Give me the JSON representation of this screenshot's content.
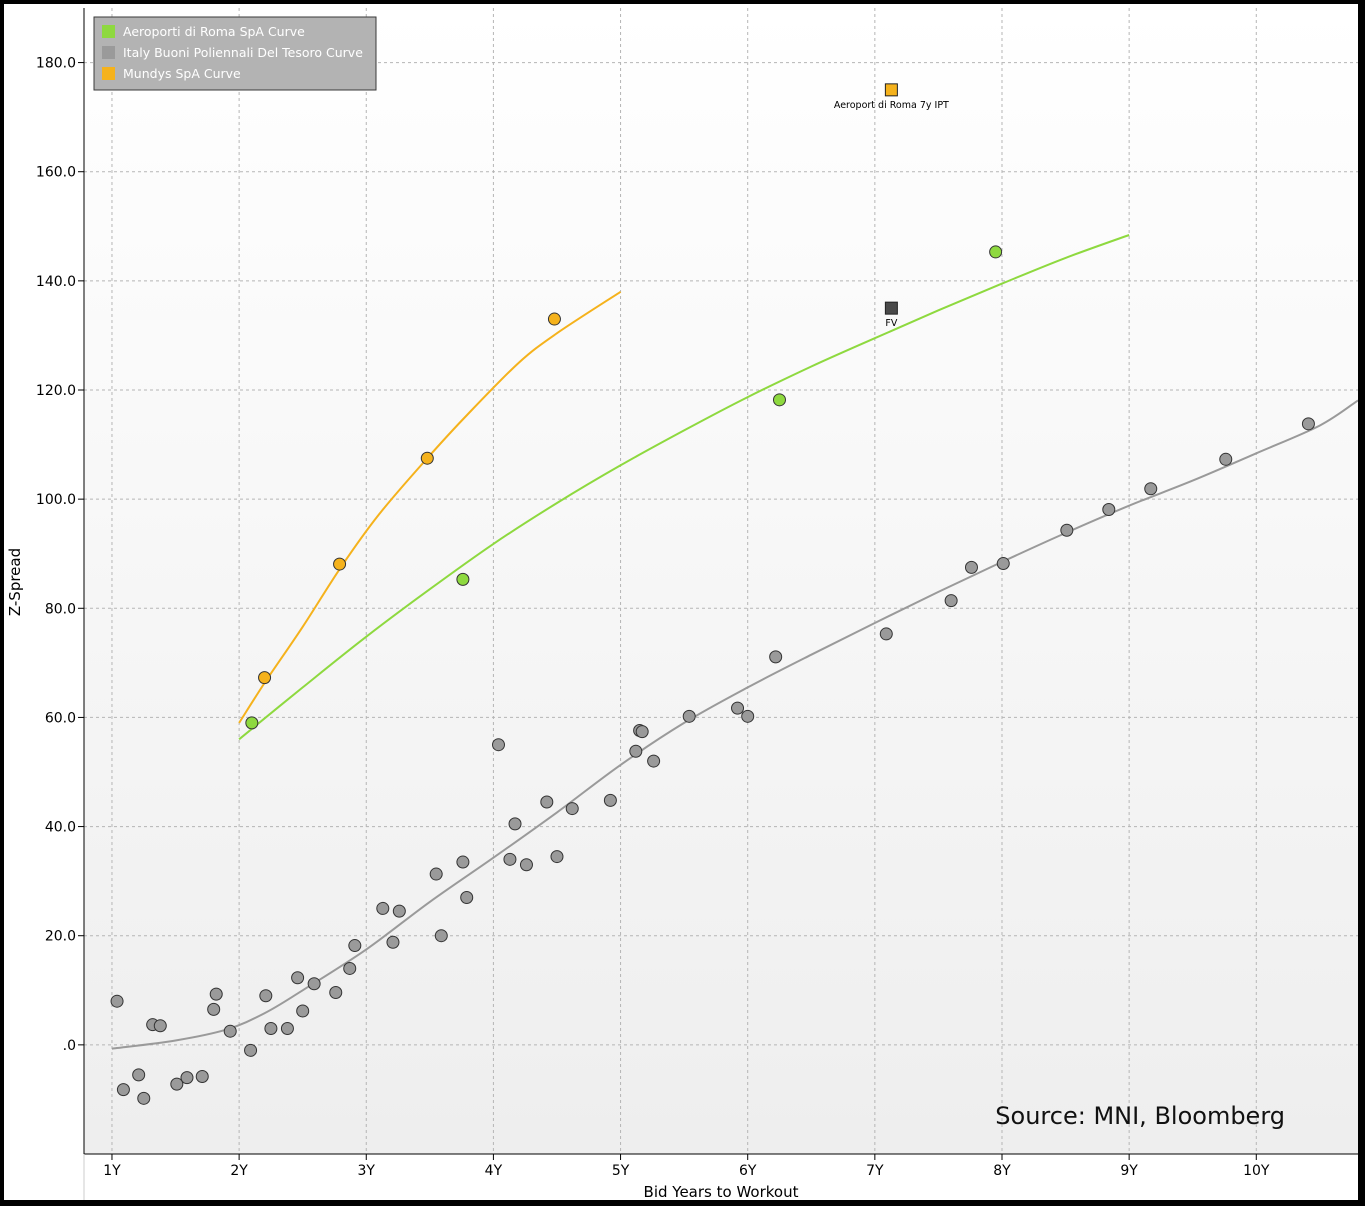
{
  "chart_data": {
    "type": "scatter",
    "xlabel": "Bid Years to Workout",
    "ylabel": "Z-Spread",
    "xlim": [
      0.78,
      10.8
    ],
    "ylim": [
      -20,
      190
    ],
    "x_ticks": [
      {
        "value": 1,
        "label": "1Y"
      },
      {
        "value": 2,
        "label": "2Y"
      },
      {
        "value": 3,
        "label": "3Y"
      },
      {
        "value": 4,
        "label": "4Y"
      },
      {
        "value": 5,
        "label": "5Y"
      },
      {
        "value": 6,
        "label": "6Y"
      },
      {
        "value": 7,
        "label": "7Y"
      },
      {
        "value": 8,
        "label": "8Y"
      },
      {
        "value": 9,
        "label": "9Y"
      },
      {
        "value": 10,
        "label": "10Y"
      }
    ],
    "y_ticks": [
      {
        "value": 0,
        "label": ".0"
      },
      {
        "value": 20,
        "label": "20.0"
      },
      {
        "value": 40,
        "label": "40.0"
      },
      {
        "value": 60,
        "label": "60.0"
      },
      {
        "value": 80,
        "label": "80.0"
      },
      {
        "value": 100,
        "label": "100.0"
      },
      {
        "value": 120,
        "label": "120.0"
      },
      {
        "value": 140,
        "label": "140.0"
      },
      {
        "value": 160,
        "label": "160.0"
      },
      {
        "value": 180,
        "label": "180.0"
      }
    ],
    "grid": true,
    "legend_position": "top-left",
    "source_note": "Source: MNI, Bloomberg",
    "series": [
      {
        "name": "Aeroporti di Roma SpA Curve",
        "color": "#8ed93f",
        "points": [
          [
            2.1,
            59.0
          ],
          [
            3.76,
            85.3
          ],
          [
            6.25,
            118.2
          ],
          [
            7.95,
            145.3
          ]
        ],
        "curve": [
          [
            2.0,
            56.0
          ],
          [
            2.5,
            65.5
          ],
          [
            3.0,
            74.8
          ],
          [
            3.5,
            83.5
          ],
          [
            4.0,
            91.8
          ],
          [
            4.5,
            99.3
          ],
          [
            5.0,
            106.2
          ],
          [
            5.5,
            112.6
          ],
          [
            6.0,
            118.7
          ],
          [
            6.5,
            124.3
          ],
          [
            7.0,
            129.5
          ],
          [
            7.5,
            134.6
          ],
          [
            8.0,
            139.5
          ],
          [
            8.5,
            144.2
          ],
          [
            9.0,
            148.4
          ]
        ]
      },
      {
        "name": "Italy Buoni Poliennali Del Tesoro Curve",
        "color": "#9a9a9a",
        "points": [
          [
            1.04,
            8.0
          ],
          [
            1.09,
            -8.2
          ],
          [
            1.21,
            -5.5
          ],
          [
            1.25,
            -9.8
          ],
          [
            1.32,
            3.7
          ],
          [
            1.38,
            3.5
          ],
          [
            1.51,
            -7.2
          ],
          [
            1.59,
            -6.0
          ],
          [
            1.71,
            -5.8
          ],
          [
            1.8,
            6.5
          ],
          [
            1.82,
            9.3
          ],
          [
            1.93,
            2.5
          ],
          [
            2.09,
            -1.0
          ],
          [
            2.21,
            9.0
          ],
          [
            2.25,
            3.0
          ],
          [
            2.38,
            3.0
          ],
          [
            2.46,
            12.3
          ],
          [
            2.5,
            6.2
          ],
          [
            2.59,
            11.2
          ],
          [
            2.76,
            9.6
          ],
          [
            2.87,
            14.0
          ],
          [
            2.91,
            18.2
          ],
          [
            3.13,
            25.0
          ],
          [
            3.21,
            18.8
          ],
          [
            3.26,
            24.5
          ],
          [
            3.55,
            31.3
          ],
          [
            3.59,
            20.0
          ],
          [
            3.76,
            33.5
          ],
          [
            3.79,
            27.0
          ],
          [
            4.04,
            55.0
          ],
          [
            4.13,
            34.0
          ],
          [
            4.17,
            40.5
          ],
          [
            4.26,
            33.0
          ],
          [
            4.42,
            44.5
          ],
          [
            4.5,
            34.5
          ],
          [
            4.62,
            43.3
          ],
          [
            4.92,
            44.8
          ],
          [
            5.12,
            53.8
          ],
          [
            5.15,
            57.6
          ],
          [
            5.17,
            57.4
          ],
          [
            5.26,
            52.0
          ],
          [
            5.54,
            60.2
          ],
          [
            5.92,
            61.7
          ],
          [
            6.0,
            60.2
          ],
          [
            6.22,
            71.1
          ],
          [
            7.09,
            75.3
          ],
          [
            7.6,
            81.4
          ],
          [
            7.76,
            87.5
          ],
          [
            8.01,
            88.2
          ],
          [
            8.51,
            94.3
          ],
          [
            8.84,
            98.1
          ],
          [
            9.17,
            101.9
          ],
          [
            9.76,
            107.3
          ],
          [
            10.41,
            113.8
          ]
        ],
        "curve": [
          [
            1.0,
            -0.7
          ],
          [
            1.5,
            0.8
          ],
          [
            1.9,
            2.8
          ],
          [
            2.2,
            5.8
          ],
          [
            2.5,
            10.0
          ],
          [
            3.0,
            17.5
          ],
          [
            3.5,
            26.2
          ],
          [
            4.0,
            34.3
          ],
          [
            4.5,
            42.6
          ],
          [
            5.0,
            51.3
          ],
          [
            5.5,
            59.0
          ],
          [
            6.0,
            65.5
          ],
          [
            6.5,
            71.5
          ],
          [
            7.0,
            77.3
          ],
          [
            7.5,
            83.0
          ],
          [
            8.0,
            88.5
          ],
          [
            8.5,
            93.8
          ],
          [
            9.0,
            98.8
          ],
          [
            9.5,
            103.4
          ],
          [
            10.0,
            108.4
          ],
          [
            10.5,
            113.5
          ],
          [
            10.8,
            118.1
          ]
        ]
      },
      {
        "name": "Mundys SpA Curve",
        "color": "#f5b21c",
        "points": [
          [
            2.2,
            67.3
          ],
          [
            2.79,
            88.1
          ],
          [
            3.48,
            107.5
          ],
          [
            4.48,
            133.0
          ]
        ],
        "curve": [
          [
            2.0,
            59.0
          ],
          [
            2.2,
            66.3
          ],
          [
            2.5,
            76.6
          ],
          [
            2.8,
            87.5
          ],
          [
            3.1,
            97.2
          ],
          [
            3.48,
            107.5
          ],
          [
            3.8,
            115.6
          ],
          [
            4.2,
            125.0
          ],
          [
            4.5,
            130.4
          ],
          [
            5.0,
            138.0
          ]
        ]
      }
    ],
    "annotations": [
      {
        "label": "Aeroport di Roma 7y IPT",
        "x": 7.13,
        "y": 175.0,
        "color": "#f5b21c"
      },
      {
        "label": "FV",
        "x": 7.13,
        "y": 135.0,
        "color": "#4a4a4a"
      }
    ]
  }
}
